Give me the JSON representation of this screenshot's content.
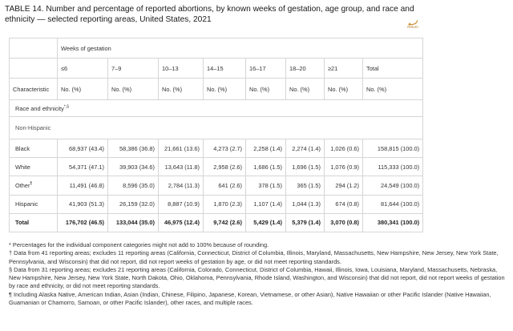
{
  "title": "TABLE 14. Number and percentage of reported abortions, by known weeks of gestation, age group, and race and ethnicity — selected reporting areas, United States, 2021",
  "return_label": "Return",
  "header": {
    "weeks_label": "Weeks of gestation",
    "characteristic_label": "Characteristic",
    "columns": [
      "≤6",
      "7–9",
      "10–13",
      "14–15",
      "16–17",
      "18–20",
      "≥21",
      "Total"
    ],
    "unit": "No. (%)"
  },
  "section": {
    "label": "Race and ethnicity",
    "marks": "*,§",
    "subgroup": "Non-Hispanic"
  },
  "rows": [
    {
      "label": "Black",
      "mark": "",
      "cells": [
        "68,937 (43.4)",
        "58,386 (36.8)",
        "21,661 (13.6)",
        "4,273 (2.7)",
        "2,258 (1.4)",
        "2,274 (1.4)",
        "1,026 (0.6)",
        "158,815 (100.0)"
      ]
    },
    {
      "label": "White",
      "mark": "",
      "cells": [
        "54,371 (47.1)",
        "39,903 (34.6)",
        "13,643 (11.8)",
        "2,958 (2.6)",
        "1,686 (1.5)",
        "1,696 (1.5)",
        "1,076 (0.9)",
        "115,333 (100.0)"
      ]
    },
    {
      "label": "Other",
      "mark": "¶",
      "cells": [
        "11,491 (46.8)",
        "8,596 (35.0)",
        "2,784 (11.3)",
        "641 (2.6)",
        "378 (1.5)",
        "365 (1.5)",
        "294 (1.2)",
        "24,549 (100.0)"
      ]
    },
    {
      "label": "Hispanic",
      "mark": "",
      "cells": [
        "41,903 (51.3)",
        "26,159 (32.0)",
        "8,887 (10.9)",
        "1,870 (2.3)",
        "1,107 (1.4)",
        "1,044 (1.3)",
        "674 (0.8)",
        "81,644 (100.0)"
      ]
    }
  ],
  "total_row": {
    "label": "Total",
    "cells": [
      "176,702 (46.5)",
      "133,044 (35.0)",
      "46,975 (12.4)",
      "9,742 (2.6)",
      "5,429 (1.4)",
      "5,379 (1.4)",
      "3,070 (0.8)",
      "380,341 (100.0)"
    ]
  },
  "notes": [
    "* Percentages for the individual component categories might not add to 100% because of rounding.",
    "† Data from 41 reporting areas; excludes 11 reporting areas (California, Connecticut, District of Columbia, Illinois, Maryland, Massachusetts, New Hampshire, New Jersey, New York State, Pennsylvania, and Wisconsin) that did not report, did not report weeks of gestation by age, or did not meet reporting standards.",
    "§ Data from 31 reporting areas; excludes 21 reporting areas (California, Colorado, Connecticut, District of Columbia, Hawaii, Illinois, Iowa, Louisiana, Maryland, Massachusetts, Nebraska, New Hampshire, New Jersey, New York State, North Dakota, Ohio, Oklahoma, Pennsylvania, Rhode Island, Washington, and Wisconsin) that did not report, did not report weeks of gestation by race and ethnicity, or did not meet reporting standards.",
    "¶ Including Alaska Native, American Indian, Asian (Indian, Chinese, Filipino, Japanese, Korean, Vietnamese, or other Asian), Native Hawaiian or other Pacific Islander (Native Hawaiian, Guamanian or Chamorro, Samoan, or other Pacific Islander), other races, and multiple races."
  ],
  "colors": {
    "text": "#222222",
    "border": "#d6d6d6",
    "return": "#b07a2a"
  }
}
